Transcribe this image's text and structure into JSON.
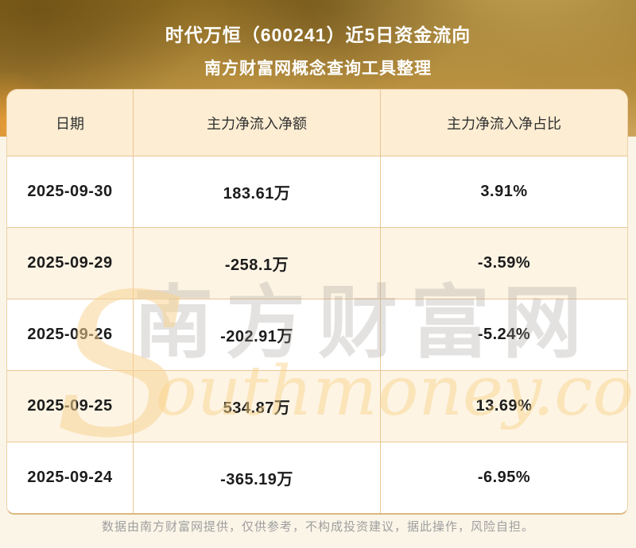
{
  "header": {
    "title_line1": "时代万恒（600241）近5日资金流向",
    "title_line2": "南方财富网概念查询工具整理"
  },
  "table": {
    "columns": [
      "日期",
      "主力净流入净额",
      "主力净流入净占比"
    ],
    "rows": [
      {
        "date": "2025-09-30",
        "amount": "183.61万",
        "ratio": "3.91%"
      },
      {
        "date": "2025-09-29",
        "amount": "-258.1万",
        "ratio": "-3.59%"
      },
      {
        "date": "2025-09-26",
        "amount": "-202.91万",
        "ratio": "-5.24%"
      },
      {
        "date": "2025-09-25",
        "amount": "534.87万",
        "ratio": "13.69%"
      },
      {
        "date": "2025-09-24",
        "amount": "-365.19万",
        "ratio": "-6.95%"
      }
    ]
  },
  "watermark": {
    "cn": "南方财富网",
    "en_initial": "S",
    "en_rest": "outhmoney.com"
  },
  "footer": {
    "disclaimer": "数据由南方财富网提供，仅供参考，不构成投资建议，据此操作，风险自担。"
  },
  "colors": {
    "banner_gold_dark": "#8c6a1e",
    "banner_gold_light": "#cda45c",
    "header_row_bg": "#fcedd3",
    "row_bg_white": "#ffffff",
    "row_bg_cream": "#fdf4e4",
    "table_border": "#e9c694",
    "title_text": "#ffffff",
    "data_text": "#1c1c1c",
    "footer_text": "#9e9e9e",
    "watermark_orange": "#f8d394",
    "watermark_gray": "#a59f98",
    "page_bg": "#fbf5e8"
  },
  "chart_data": {
    "type": "table",
    "title": "时代万恒（600241）近5日资金流向",
    "subtitle": "南方财富网概念查询工具整理",
    "columns": [
      "日期",
      "主力净流入净额",
      "主力净流入净占比"
    ],
    "rows": [
      [
        "2025-09-30",
        "183.61万",
        "3.91%"
      ],
      [
        "2025-09-29",
        "-258.1万",
        "-3.59%"
      ],
      [
        "2025-09-26",
        "-202.91万",
        "-5.24%"
      ],
      [
        "2025-09-25",
        "534.87万",
        "13.69%"
      ],
      [
        "2025-09-24",
        "-365.19万",
        "-6.95%"
      ]
    ],
    "series": [
      {
        "name": "主力净流入净额(万)",
        "values": [
          183.61,
          -258.1,
          -202.91,
          534.87,
          -365.19
        ]
      },
      {
        "name": "主力净流入净占比(%)",
        "values": [
          3.91,
          -3.59,
          -5.24,
          13.69,
          -6.95
        ]
      }
    ],
    "x": [
      "2025-09-30",
      "2025-09-29",
      "2025-09-26",
      "2025-09-25",
      "2025-09-24"
    ]
  }
}
